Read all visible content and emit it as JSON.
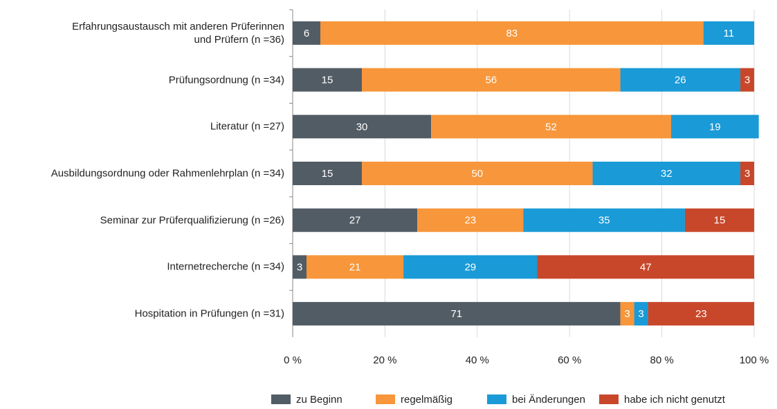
{
  "chart_data": {
    "type": "stacked-bar-horizontal",
    "categories": [
      "Erfahrungsaustausch mit anderen Prüferinnen\nund Prüfern (n =36)",
      "Prüfungsordnung (n =34)",
      "Literatur (n =27)",
      "Ausbildungsordnung oder Rahmenlehrplan (n =34)",
      "Seminar zur Prüferqualifizierung (n =26)",
      "Internetrecherche (n =34)",
      "Hospitation in Prüfungen (n =31)"
    ],
    "series": [
      {
        "name": "zu Beginn",
        "color": "#525c65",
        "values": [
          6,
          15,
          30,
          15,
          27,
          3,
          71
        ]
      },
      {
        "name": "regelmäßig",
        "color": "#f7963a",
        "values": [
          83,
          56,
          52,
          50,
          23,
          21,
          3
        ]
      },
      {
        "name": "bei Änderungen",
        "color": "#1a9ad6",
        "values": [
          11,
          26,
          19,
          32,
          35,
          29,
          3
        ]
      },
      {
        "name": "habe ich nicht genutzt",
        "color": "#c8472a",
        "values": [
          0,
          3,
          0,
          3,
          15,
          47,
          23
        ]
      }
    ],
    "xlim": [
      0,
      100
    ],
    "xticks": [
      {
        "value": 0,
        "label": "0 %"
      },
      {
        "value": 20,
        "label": "20 %"
      },
      {
        "value": 40,
        "label": "40 %"
      },
      {
        "value": 60,
        "label": "60 %"
      },
      {
        "value": 80,
        "label": "80 %"
      },
      {
        "value": 100,
        "label": "100 %"
      }
    ],
    "grid": true,
    "legend": "bottom-right"
  }
}
